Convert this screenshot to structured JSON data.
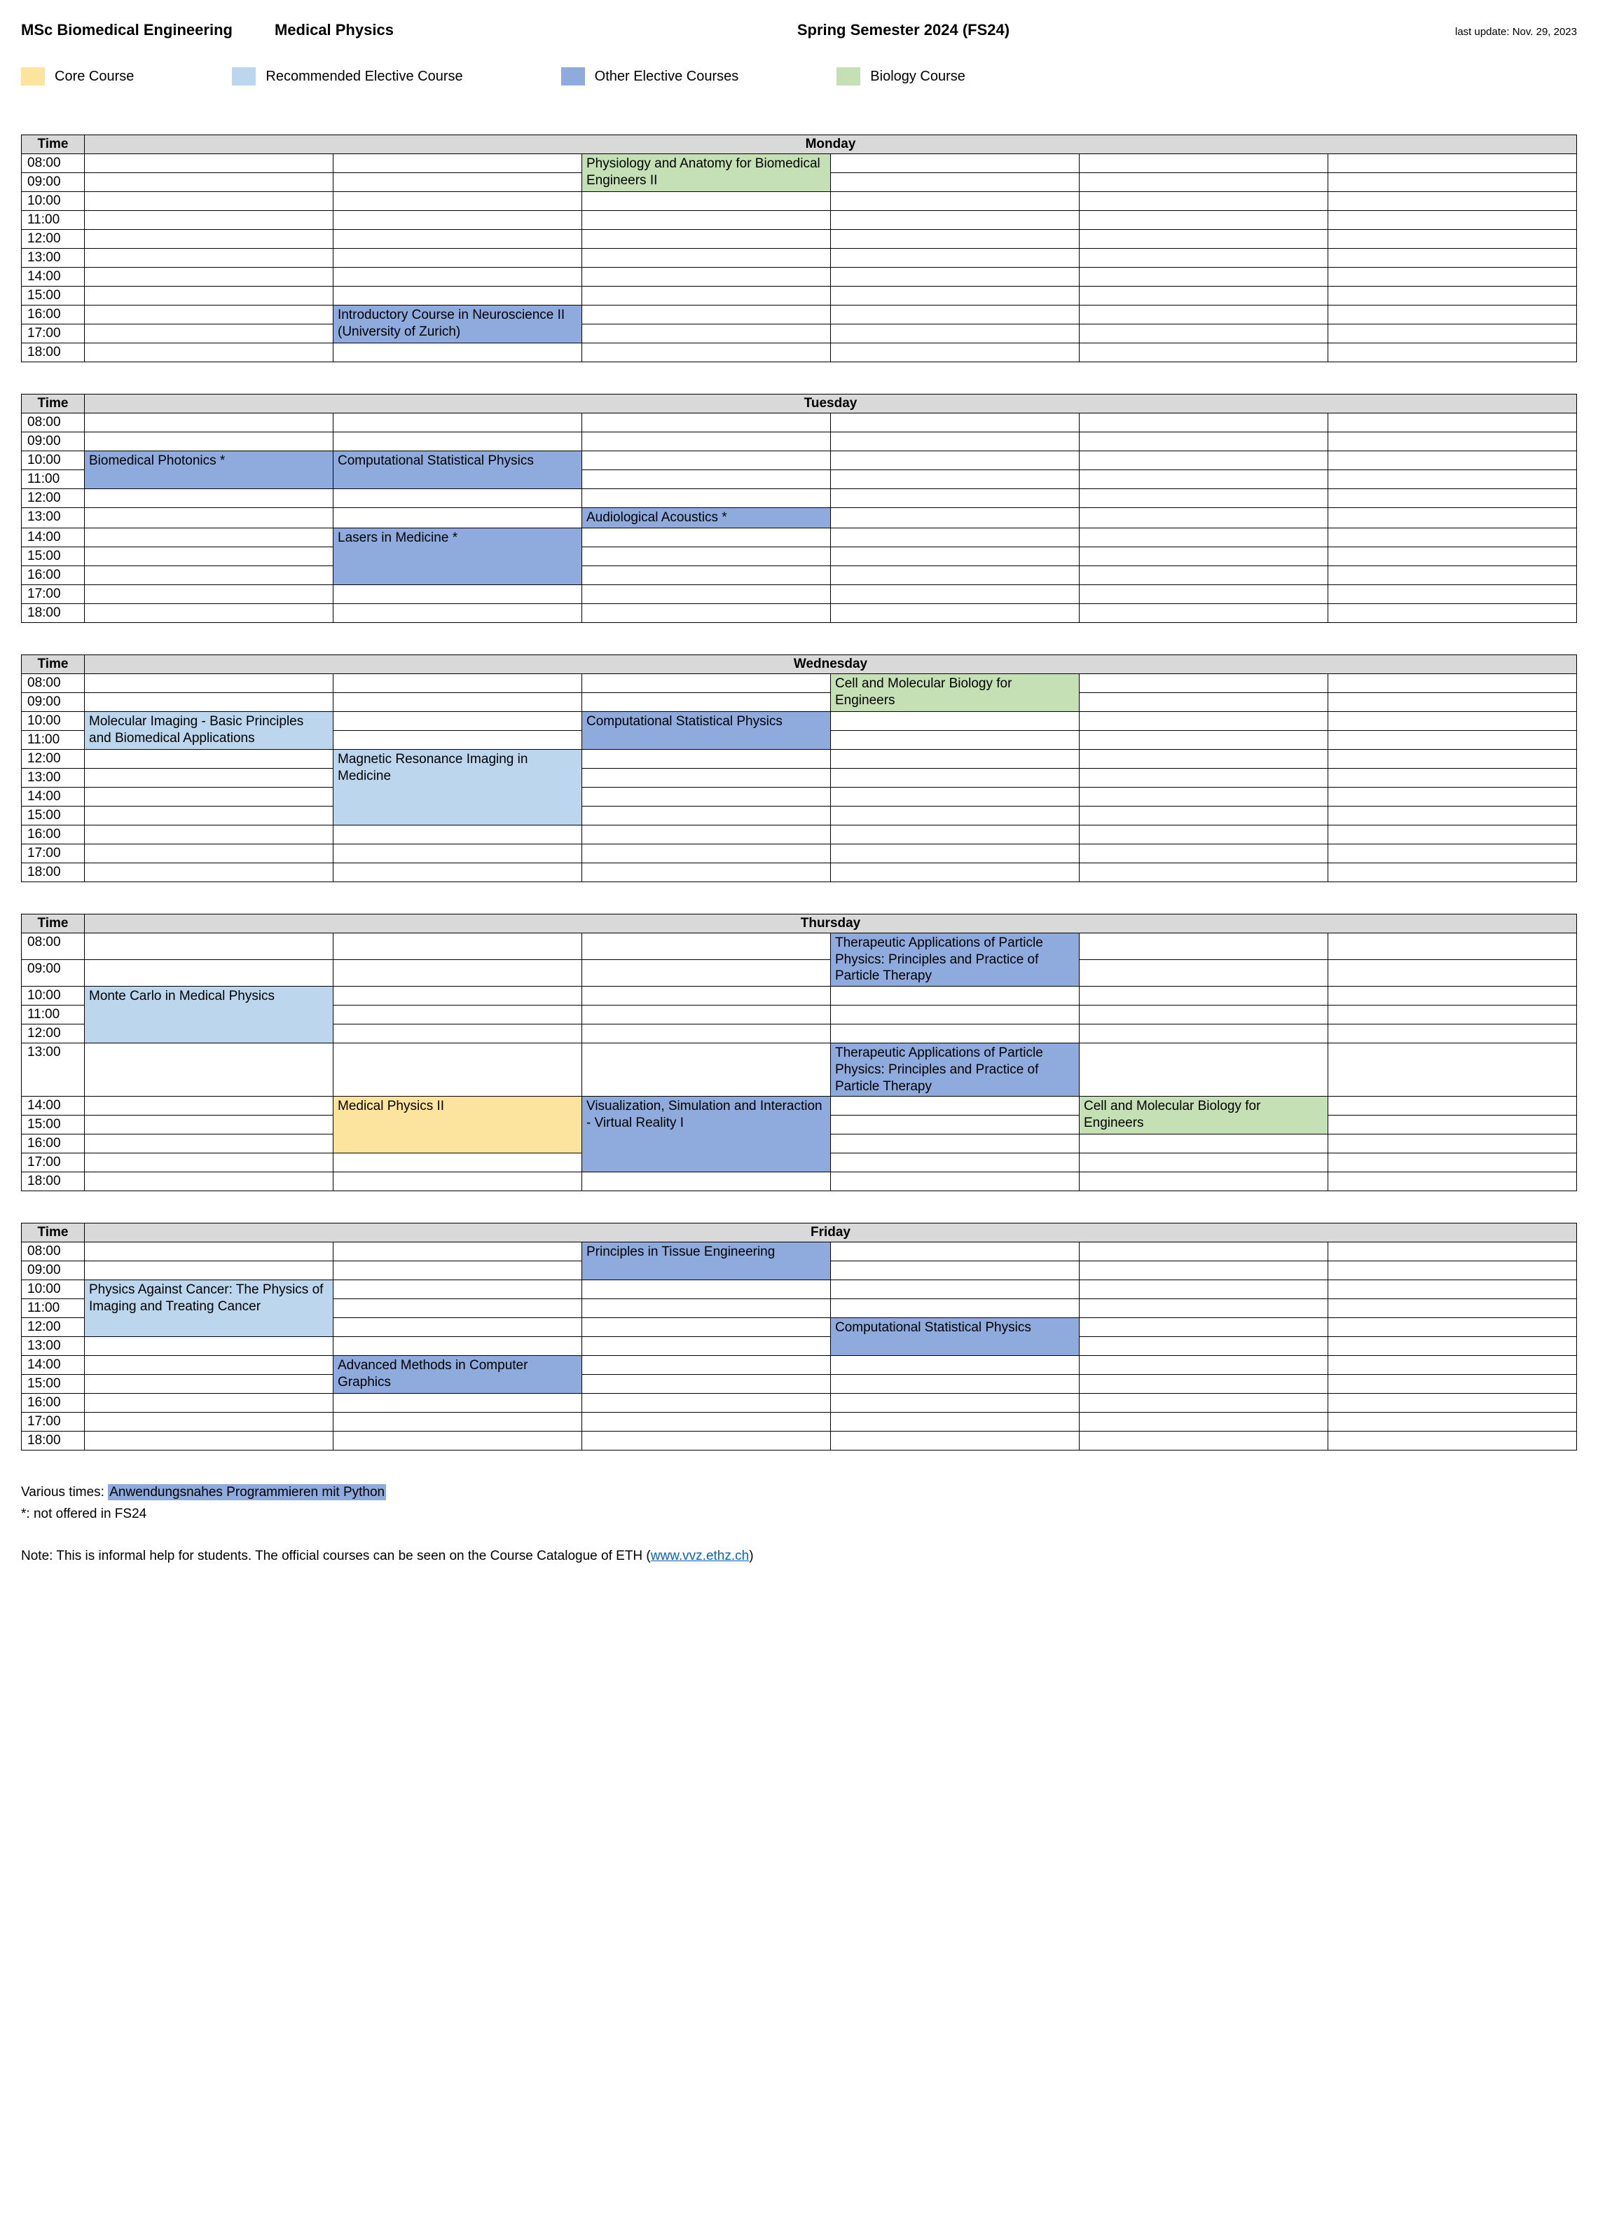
{
  "colors": {
    "core": "#fde49e",
    "recommended": "#bcd6ee",
    "other": "#8faadc",
    "biology": "#c5e0b4",
    "header_bg": "#d9d9d9",
    "border": "#000000",
    "text": "#000000",
    "link": "#0563c1"
  },
  "header": {
    "program": "MSc Biomedical Engineering",
    "track": "Medical Physics",
    "semester": "Spring Semester 2024 (FS24)",
    "last_update": "last update: Nov. 29, 2023"
  },
  "legend": [
    {
      "label": "Core Course",
      "color_key": "core"
    },
    {
      "label": "Recommended Elective Course",
      "color_key": "recommended"
    },
    {
      "label": "Other Elective Courses",
      "color_key": "other"
    },
    {
      "label": "Biology Course",
      "color_key": "biology"
    }
  ],
  "time_header": "Time",
  "times": [
    "08:00",
    "09:00",
    "10:00",
    "11:00",
    "12:00",
    "13:00",
    "14:00",
    "15:00",
    "16:00",
    "17:00",
    "18:00"
  ],
  "columns_per_day": 6,
  "days": [
    {
      "name": "Monday",
      "courses": [
        {
          "label": "Physiology and Anatomy for Biomedical Engineers II",
          "col": 2,
          "start": 0,
          "span": 2,
          "color_key": "biology"
        },
        {
          "label": "Introductory Course in Neuroscience II (University of Zurich)",
          "col": 1,
          "start": 8,
          "span": 2,
          "color_key": "other"
        }
      ]
    },
    {
      "name": "Tuesday",
      "courses": [
        {
          "label": "Biomedical Photonics *",
          "col": 0,
          "start": 2,
          "span": 2,
          "color_key": "other"
        },
        {
          "label": "Computational Statistical Physics",
          "col": 1,
          "start": 2,
          "span": 2,
          "color_key": "other"
        },
        {
          "label": "Audiological Acoustics *",
          "col": 2,
          "start": 5,
          "span": 1,
          "color_key": "other"
        },
        {
          "label": "Lasers in Medicine *",
          "col": 1,
          "start": 6,
          "span": 3,
          "color_key": "other"
        }
      ]
    },
    {
      "name": "Wednesday",
      "courses": [
        {
          "label": "Cell and Molecular Biology for Engineers",
          "col": 3,
          "start": 0,
          "span": 2,
          "color_key": "biology"
        },
        {
          "label": "Molecular Imaging - Basic Principles and Biomedical Applications",
          "col": 0,
          "start": 2,
          "span": 2,
          "color_key": "recommended"
        },
        {
          "label": "Computational Statistical Physics",
          "col": 2,
          "start": 2,
          "span": 2,
          "color_key": "other"
        },
        {
          "label": "Magnetic Resonance Imaging in Medicine",
          "col": 1,
          "start": 4,
          "span": 4,
          "color_key": "recommended"
        }
      ]
    },
    {
      "name": "Thursday",
      "courses": [
        {
          "label": "Therapeutic Applications of Particle Physics: Principles and Practice of Particle Therapy",
          "col": 3,
          "start": 0,
          "span": 2,
          "color_key": "other"
        },
        {
          "label": "Monte Carlo in Medical Physics",
          "col": 0,
          "start": 2,
          "span": 3,
          "color_key": "recommended"
        },
        {
          "label": "Therapeutic Applications of Particle Physics: Principles and Practice of Particle Therapy",
          "col": 3,
          "start": 5,
          "span": 1,
          "color_key": "other"
        },
        {
          "label": "Medical Physics II",
          "col": 1,
          "start": 6,
          "span": 3,
          "color_key": "core"
        },
        {
          "label": "Visualization, Simulation and Interaction - Virtual Reality I",
          "col": 2,
          "start": 6,
          "span": 4,
          "color_key": "other"
        },
        {
          "label": "Cell and Molecular Biology for Engineers",
          "col": 4,
          "start": 6,
          "span": 2,
          "color_key": "biology"
        }
      ]
    },
    {
      "name": "Friday",
      "courses": [
        {
          "label": "Principles in Tissue Engineering",
          "col": 2,
          "start": 0,
          "span": 2,
          "color_key": "other"
        },
        {
          "label": "Physics Against Cancer: The Physics of Imaging and Treating Cancer",
          "col": 0,
          "start": 2,
          "span": 3,
          "color_key": "recommended"
        },
        {
          "label": "Computational Statistical Physics",
          "col": 3,
          "start": 4,
          "span": 2,
          "color_key": "other"
        },
        {
          "label": "Advanced Methods in Computer Graphics",
          "col": 1,
          "start": 6,
          "span": 2,
          "color_key": "other"
        }
      ]
    }
  ],
  "footer": {
    "various_times_prefix": "Various times: ",
    "various_times_course": "Anwendungsnahes Programmieren mit Python",
    "various_times_color_key": "other",
    "asterisk_note": "*: not offered in FS24",
    "note_prefix": "Note: This is informal help for students. The official courses can be seen on the Course Catalogue of ETH (",
    "note_link_text": "www.vvz.ethz.ch",
    "note_suffix": ")"
  }
}
